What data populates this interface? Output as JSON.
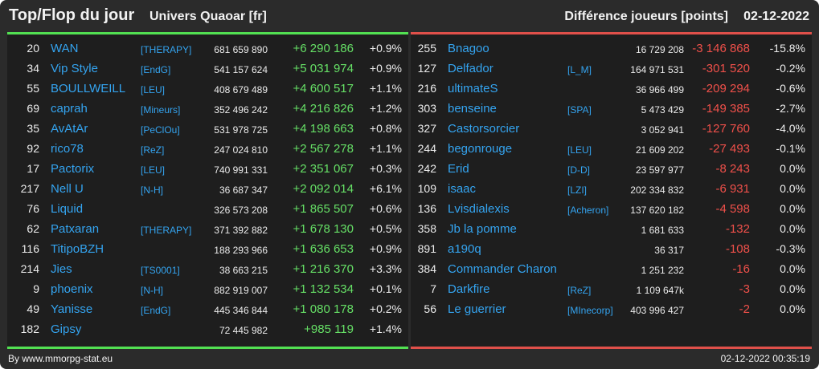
{
  "header": {
    "title": "Top/Flop du jour",
    "universe": "Univers Quaoar [fr]",
    "difference_label": "Différence joueurs [points]",
    "date": "02-12-2022"
  },
  "colors": {
    "background": "#2b2b2b",
    "panel": "#1e1e1e",
    "top_accent": "#52e052",
    "flop_accent": "#e0504a",
    "link": "#34a4f0"
  },
  "top": [
    {
      "rank": "20",
      "name": "WAN",
      "alliance": "[THERAPY]",
      "points": "681 659 890",
      "delta": "+6 290 186",
      "pct": "+0.9%"
    },
    {
      "rank": "34",
      "name": "Vip Style",
      "alliance": "[EndG]",
      "points": "541 157 624",
      "delta": "+5 031 974",
      "pct": "+0.9%"
    },
    {
      "rank": "55",
      "name": "BOULLWEILL",
      "alliance": "[LEU]",
      "points": "408 679 489",
      "delta": "+4 600 517",
      "pct": "+1.1%"
    },
    {
      "rank": "69",
      "name": "caprah",
      "alliance": "[Mineurs]",
      "points": "352 496 242",
      "delta": "+4 216 826",
      "pct": "+1.2%"
    },
    {
      "rank": "35",
      "name": "AvAtAr",
      "alliance": "[PeClOu]",
      "points": "531 978 725",
      "delta": "+4 198 663",
      "pct": "+0.8%"
    },
    {
      "rank": "92",
      "name": "rico78",
      "alliance": "[ReZ]",
      "points": "247 024 810",
      "delta": "+2 567 278",
      "pct": "+1.1%"
    },
    {
      "rank": "17",
      "name": "Pactorix",
      "alliance": "[LEU]",
      "points": "740 991 331",
      "delta": "+2 351 067",
      "pct": "+0.3%"
    },
    {
      "rank": "217",
      "name": "Nell U",
      "alliance": "[N-H]",
      "points": "36 687 347",
      "delta": "+2 092 014",
      "pct": "+6.1%"
    },
    {
      "rank": "76",
      "name": "Liquid",
      "alliance": "",
      "points": "326 573 208",
      "delta": "+1 865 507",
      "pct": "+0.6%"
    },
    {
      "rank": "62",
      "name": "Patxaran",
      "alliance": "[THERAPY]",
      "points": "371 392 882",
      "delta": "+1 678 130",
      "pct": "+0.5%"
    },
    {
      "rank": "116",
      "name": "TitipoBZH",
      "alliance": "",
      "points": "188 293 966",
      "delta": "+1 636 653",
      "pct": "+0.9%"
    },
    {
      "rank": "214",
      "name": "Jies",
      "alliance": "[TS0001]",
      "points": "38 663 215",
      "delta": "+1 216 370",
      "pct": "+3.3%"
    },
    {
      "rank": "9",
      "name": "phoenix",
      "alliance": "[N-H]",
      "points": "882 919 007",
      "delta": "+1 132 534",
      "pct": "+0.1%"
    },
    {
      "rank": "49",
      "name": "Yanisse",
      "alliance": "[EndG]",
      "points": "445 346 844",
      "delta": "+1 080 178",
      "pct": "+0.2%"
    },
    {
      "rank": "182",
      "name": "Gipsy",
      "alliance": "",
      "points": "72 445 982",
      "delta": "+985 119",
      "pct": "+1.4%"
    }
  ],
  "flop": [
    {
      "rank": "255",
      "name": "Bnagoo",
      "alliance": "",
      "points": "16 729 208",
      "delta": "-3 146 868",
      "pct": "-15.8%"
    },
    {
      "rank": "127",
      "name": "Delfador",
      "alliance": "[L_M]",
      "points": "164 971 531",
      "delta": "-301 520",
      "pct": "-0.2%"
    },
    {
      "rank": "216",
      "name": "ultimateS",
      "alliance": "",
      "points": "36 966 499",
      "delta": "-209 294",
      "pct": "-0.6%"
    },
    {
      "rank": "303",
      "name": "benseine",
      "alliance": "[SPA]",
      "points": "5 473 429",
      "delta": "-149 385",
      "pct": "-2.7%"
    },
    {
      "rank": "327",
      "name": "Castorsorcier",
      "alliance": "",
      "points": "3 052 941",
      "delta": "-127 760",
      "pct": "-4.0%"
    },
    {
      "rank": "244",
      "name": "begonrouge",
      "alliance": "[LEU]",
      "points": "21 609 202",
      "delta": "-27 493",
      "pct": "-0.1%"
    },
    {
      "rank": "242",
      "name": "Erid",
      "alliance": "[D-D]",
      "points": "23 597 977",
      "delta": "-8 243",
      "pct": "0.0%"
    },
    {
      "rank": "109",
      "name": "isaac",
      "alliance": "[LZI]",
      "points": "202 334 832",
      "delta": "-6 931",
      "pct": "0.0%"
    },
    {
      "rank": "136",
      "name": "Lvisdialexis",
      "alliance": "[Acheron]",
      "points": "137 620 182",
      "delta": "-4 598",
      "pct": "0.0%"
    },
    {
      "rank": "358",
      "name": "Jb la pomme",
      "alliance": "",
      "points": "1 681 633",
      "delta": "-132",
      "pct": "0.0%"
    },
    {
      "rank": "891",
      "name": "a190q",
      "alliance": "",
      "points": "36 317",
      "delta": "-108",
      "pct": "-0.3%"
    },
    {
      "rank": "384",
      "name": "Commander Charon",
      "alliance": "",
      "points": "1 251 232",
      "delta": "-16",
      "pct": "0.0%"
    },
    {
      "rank": "7",
      "name": "Darkfire",
      "alliance": "[ReZ]",
      "points": "1 109 647k",
      "delta": "-3",
      "pct": "0.0%"
    },
    {
      "rank": "56",
      "name": "Le guerrier",
      "alliance": "[MInecorp]",
      "points": "403 996 427",
      "delta": "-2",
      "pct": "0.0%"
    }
  ],
  "footer": {
    "source": "By www.mmorpg-stat.eu",
    "timestamp": "02-12-2022 00:35:19"
  }
}
